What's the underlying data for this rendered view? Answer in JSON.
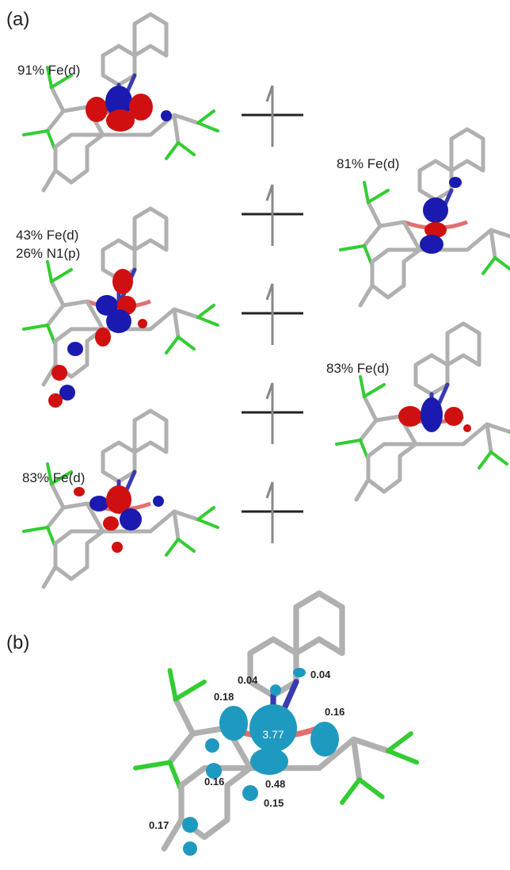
{
  "panel_a": {
    "label": "(a)",
    "orbitals": [
      {
        "lines": [
          "91% Fe(d)"
        ]
      },
      {
        "lines": [
          "81% Fe(d)"
        ]
      },
      {
        "lines": [
          "43% Fe(d)",
          "26% N1(p)"
        ]
      },
      {
        "lines": [
          "83% Fe(d)"
        ]
      },
      {
        "lines": [
          "83% Fe(d)"
        ]
      }
    ]
  },
  "panel_b": {
    "label": "(b)",
    "spin_densities": [
      "0.04",
      "0.04",
      "0.18",
      "0.16",
      "3.77",
      "0.48",
      "0.16",
      "0.15",
      "0.17"
    ]
  }
}
